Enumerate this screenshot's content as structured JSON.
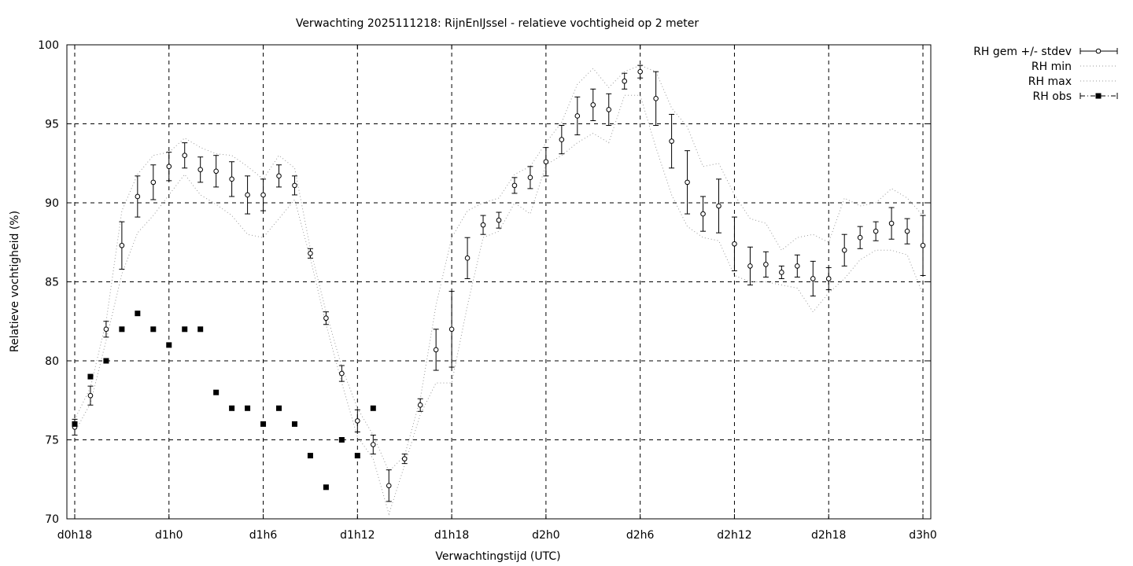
{
  "chart_data": {
    "type": "line",
    "title": "Verwachting 2025111218: RijnEnIJssel - relatieve vochtigheid op 2 meter",
    "xlabel": "Verwachtingstijd (UTC)",
    "ylabel": "Relatieve vochtigheid (%)",
    "xlim": [
      -0.5,
      54.5
    ],
    "ylim": [
      70,
      100
    ],
    "grid": true,
    "legend_position": "outside-top-right",
    "x_ticks": [
      {
        "x": 0,
        "label": "d0h18"
      },
      {
        "x": 6,
        "label": "d1h0"
      },
      {
        "x": 12,
        "label": "d1h6"
      },
      {
        "x": 18,
        "label": "d1h12"
      },
      {
        "x": 24,
        "label": "d1h18"
      },
      {
        "x": 30,
        "label": "d2h0"
      },
      {
        "x": 36,
        "label": "d2h6"
      },
      {
        "x": 42,
        "label": "d2h12"
      },
      {
        "x": 48,
        "label": "d2h18"
      },
      {
        "x": 54,
        "label": "d3h0"
      }
    ],
    "y_ticks": [
      70,
      75,
      80,
      85,
      90,
      95,
      100
    ],
    "x_unit_note": "x values are forecast hours after d0h18",
    "series": [
      {
        "name": "RH gem +/- stdev",
        "style": "errorbars",
        "points": [
          {
            "x": 0,
            "y": 75.8,
            "err": 0.5
          },
          {
            "x": 1,
            "y": 77.8,
            "err": 0.6
          },
          {
            "x": 2,
            "y": 82.0,
            "err": 0.5
          },
          {
            "x": 3,
            "y": 87.3,
            "err": 1.5
          },
          {
            "x": 4,
            "y": 90.4,
            "err": 1.3
          },
          {
            "x": 5,
            "y": 91.3,
            "err": 1.1
          },
          {
            "x": 6,
            "y": 92.3,
            "err": 0.9
          },
          {
            "x": 7,
            "y": 93.0,
            "err": 0.8
          },
          {
            "x": 8,
            "y": 92.1,
            "err": 0.8
          },
          {
            "x": 9,
            "y": 92.0,
            "err": 1.0
          },
          {
            "x": 10,
            "y": 91.5,
            "err": 1.1
          },
          {
            "x": 11,
            "y": 90.5,
            "err": 1.2
          },
          {
            "x": 12,
            "y": 90.5,
            "err": 1.0
          },
          {
            "x": 13,
            "y": 91.7,
            "err": 0.7
          },
          {
            "x": 14,
            "y": 91.1,
            "err": 0.6
          },
          {
            "x": 15,
            "y": 86.8,
            "err": 0.3
          },
          {
            "x": 16,
            "y": 82.7,
            "err": 0.4
          },
          {
            "x": 17,
            "y": 79.2,
            "err": 0.5
          },
          {
            "x": 18,
            "y": 76.2,
            "err": 0.7
          },
          {
            "x": 19,
            "y": 74.7,
            "err": 0.6
          },
          {
            "x": 20,
            "y": 72.1,
            "err": 1.0
          },
          {
            "x": 21,
            "y": 73.8,
            "err": 0.3
          },
          {
            "x": 22,
            "y": 77.2,
            "err": 0.4
          },
          {
            "x": 23,
            "y": 80.7,
            "err": 1.3
          },
          {
            "x": 24,
            "y": 82.0,
            "err": 2.4
          },
          {
            "x": 25,
            "y": 86.5,
            "err": 1.3
          },
          {
            "x": 26,
            "y": 88.6,
            "err": 0.6
          },
          {
            "x": 27,
            "y": 88.9,
            "err": 0.5
          },
          {
            "x": 28,
            "y": 91.1,
            "err": 0.5
          },
          {
            "x": 29,
            "y": 91.6,
            "err": 0.7
          },
          {
            "x": 30,
            "y": 92.6,
            "err": 0.9
          },
          {
            "x": 31,
            "y": 94.0,
            "err": 0.9
          },
          {
            "x": 32,
            "y": 95.5,
            "err": 1.2
          },
          {
            "x": 33,
            "y": 96.2,
            "err": 1.0
          },
          {
            "x": 34,
            "y": 95.9,
            "err": 1.0
          },
          {
            "x": 35,
            "y": 97.7,
            "err": 0.5
          },
          {
            "x": 36,
            "y": 98.3,
            "err": 0.4
          },
          {
            "x": 37,
            "y": 96.6,
            "err": 1.7
          },
          {
            "x": 38,
            "y": 93.9,
            "err": 1.7
          },
          {
            "x": 39,
            "y": 91.3,
            "err": 2.0
          },
          {
            "x": 40,
            "y": 89.3,
            "err": 1.1
          },
          {
            "x": 41,
            "y": 89.8,
            "err": 1.7
          },
          {
            "x": 42,
            "y": 87.4,
            "err": 1.7
          },
          {
            "x": 43,
            "y": 86.0,
            "err": 1.2
          },
          {
            "x": 44,
            "y": 86.1,
            "err": 0.8
          },
          {
            "x": 45,
            "y": 85.6,
            "err": 0.4
          },
          {
            "x": 46,
            "y": 86.0,
            "err": 0.7
          },
          {
            "x": 47,
            "y": 85.2,
            "err": 1.1
          },
          {
            "x": 48,
            "y": 85.2,
            "err": 0.7
          },
          {
            "x": 49,
            "y": 87.0,
            "err": 1.0
          },
          {
            "x": 50,
            "y": 87.8,
            "err": 0.7
          },
          {
            "x": 51,
            "y": 88.2,
            "err": 0.6
          },
          {
            "x": 52,
            "y": 88.7,
            "err": 1.0
          },
          {
            "x": 53,
            "y": 88.2,
            "err": 0.8
          },
          {
            "x": 54,
            "y": 87.3,
            "err": 1.9
          }
        ]
      },
      {
        "name": "RH min",
        "style": "dotted",
        "x": [
          0,
          1,
          2,
          3,
          4,
          5,
          6,
          7,
          8,
          9,
          10,
          11,
          12,
          13,
          14,
          15,
          16,
          17,
          18,
          19,
          20,
          21,
          22,
          23,
          24,
          25,
          26,
          27,
          28,
          29,
          30,
          31,
          32,
          33,
          34,
          35,
          36,
          37,
          38,
          39,
          40,
          41,
          42,
          43,
          44,
          45,
          46,
          47,
          48,
          49,
          50,
          51,
          52,
          53,
          54
        ],
        "y": [
          75.5,
          77.3,
          81.3,
          85.5,
          88.1,
          89.2,
          90.5,
          91.8,
          90.5,
          89.9,
          89.2,
          88.0,
          87.8,
          89.0,
          90.2,
          86.5,
          82.3,
          78.6,
          75.2,
          73.8,
          70.3,
          73.4,
          76.6,
          78.6,
          78.6,
          83.5,
          87.8,
          88.2,
          90.0,
          89.3,
          92.4,
          93.0,
          93.8,
          94.4,
          93.8,
          96.8,
          96.8,
          93.5,
          90.5,
          88.5,
          87.8,
          87.6,
          85.4,
          85.0,
          85.0,
          84.8,
          84.6,
          83.1,
          84.3,
          85.2,
          86.4,
          87.0,
          87.0,
          86.7,
          84.2
        ]
      },
      {
        "name": "RH max",
        "style": "dotted",
        "x": [
          0,
          1,
          2,
          3,
          4,
          5,
          6,
          7,
          8,
          9,
          10,
          11,
          12,
          13,
          14,
          15,
          16,
          17,
          18,
          19,
          20,
          21,
          22,
          23,
          24,
          25,
          26,
          27,
          28,
          29,
          30,
          31,
          32,
          33,
          34,
          35,
          36,
          37,
          38,
          39,
          40,
          41,
          42,
          43,
          44,
          45,
          46,
          47,
          48,
          49,
          50,
          51,
          52,
          53,
          54
        ],
        "y": [
          76.3,
          78.3,
          82.5,
          89.5,
          91.8,
          93.0,
          93.2,
          94.1,
          93.5,
          93.1,
          93.0,
          92.3,
          91.5,
          93.0,
          92.2,
          87.1,
          83.1,
          79.6,
          77.0,
          75.3,
          73.0,
          74.0,
          77.6,
          83.5,
          87.8,
          89.5,
          90.0,
          90.3,
          91.8,
          92.3,
          93.8,
          95.1,
          97.5,
          98.5,
          97.3,
          98.3,
          98.7,
          98.3,
          96.0,
          94.8,
          92.3,
          92.5,
          90.5,
          89.0,
          88.7,
          87.0,
          87.8,
          88.0,
          87.5,
          90.3,
          89.8,
          90.0,
          90.9,
          90.3,
          89.2
        ]
      },
      {
        "name": "RH obs",
        "style": "squares",
        "points": [
          {
            "x": 0,
            "y": 76
          },
          {
            "x": 1,
            "y": 79
          },
          {
            "x": 2,
            "y": 80
          },
          {
            "x": 3,
            "y": 82
          },
          {
            "x": 4,
            "y": 83
          },
          {
            "x": 5,
            "y": 82
          },
          {
            "x": 6,
            "y": 81
          },
          {
            "x": 7,
            "y": 82
          },
          {
            "x": 8,
            "y": 82
          },
          {
            "x": 9,
            "y": 78
          },
          {
            "x": 10,
            "y": 77
          },
          {
            "x": 11,
            "y": 77
          },
          {
            "x": 12,
            "y": 76
          },
          {
            "x": 13,
            "y": 77
          },
          {
            "x": 14,
            "y": 76
          },
          {
            "x": 15,
            "y": 74
          },
          {
            "x": 16,
            "y": 72
          },
          {
            "x": 17,
            "y": 75
          },
          {
            "x": 18,
            "y": 74
          },
          {
            "x": 19,
            "y": 77
          }
        ]
      }
    ]
  },
  "legend": {
    "items": [
      {
        "label": "RH gem +/- stdev"
      },
      {
        "label": "RH min"
      },
      {
        "label": "RH max"
      },
      {
        "label": "RH obs"
      }
    ]
  }
}
